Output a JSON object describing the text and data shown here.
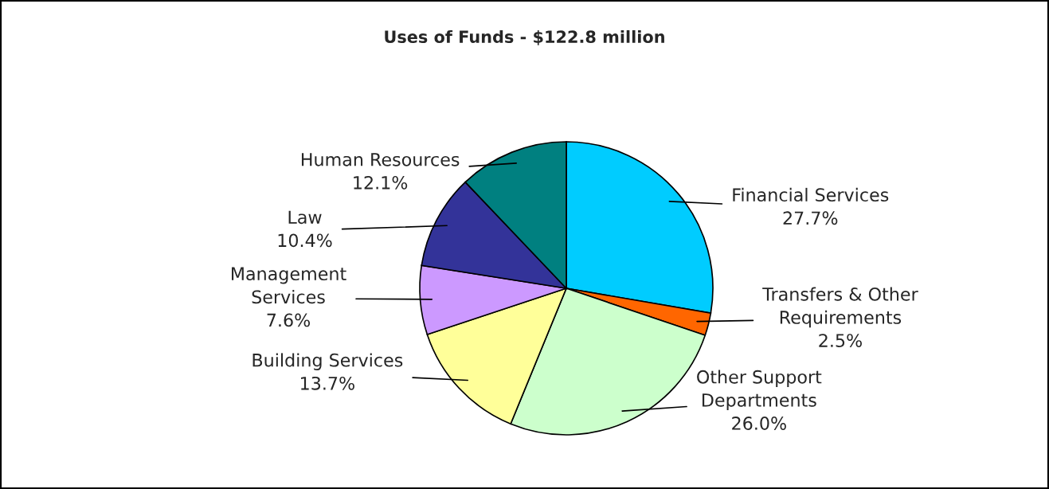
{
  "chart_data": {
    "type": "pie",
    "title": "Uses of Funds - $122.8 million",
    "categories": [
      "Financial Services",
      "Transfers & Other\nRequirements",
      "Other Support\nDepartments",
      "Building Services",
      "Management\nServices",
      "Law",
      "Human Resources"
    ],
    "values": [
      27.7,
      2.5,
      26.0,
      13.7,
      7.6,
      10.4,
      12.1
    ],
    "value_labels": [
      "27.7%",
      "2.5%",
      "26.0%",
      "13.7%",
      "7.6%",
      "10.4%",
      "12.1%"
    ],
    "colors": [
      "#00ccff",
      "#ff6600",
      "#ccffcc",
      "#ffff99",
      "#cc99ff",
      "#333399",
      "#008080"
    ]
  }
}
